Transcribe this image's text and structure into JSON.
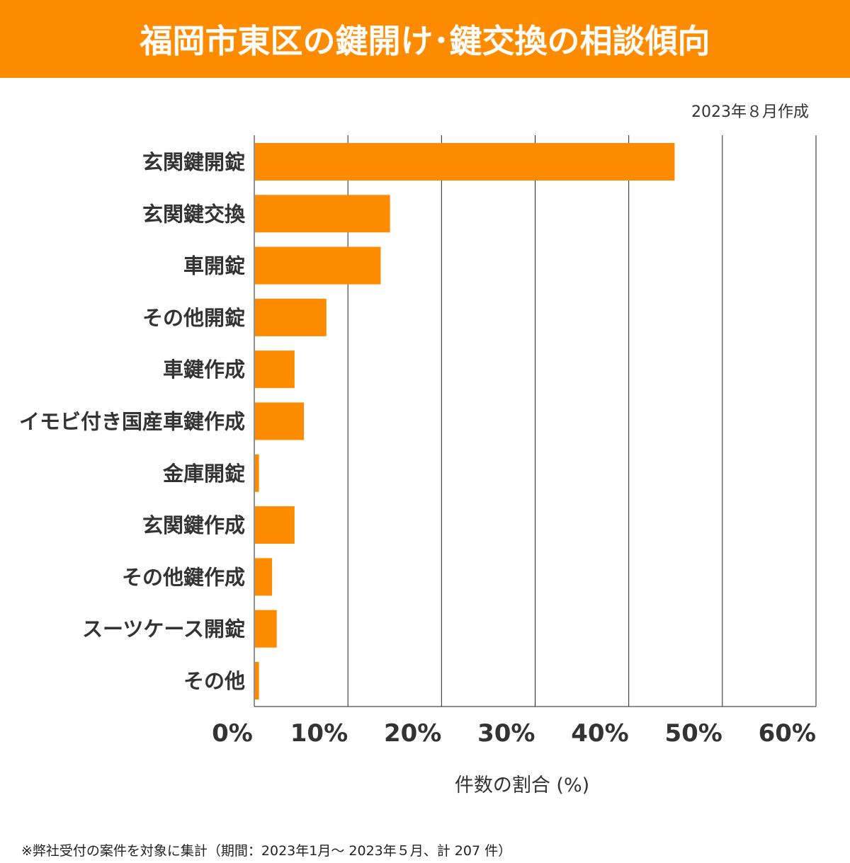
{
  "header": {
    "title": "福岡市東区の鍵開け･鍵交換の相談傾向"
  },
  "date_note": "2023年８月作成",
  "footnote": "※弊社受付の案件を対象に集計（期間：2023年1月～ 2023年５月、計 207 件）",
  "colors": {
    "bar": "#ff8c00",
    "header": "#ff8c00"
  },
  "chart_data": {
    "type": "bar",
    "orientation": "horizontal",
    "categories": [
      "玄関鍵開錠",
      "玄関鍵交換",
      "車開錠",
      "その他開錠",
      "車鍵作成",
      "イモビ付き国産車鍵作成",
      "金庫開錠",
      "玄関鍵作成",
      "その他鍵作成",
      "スーツケース開錠",
      "その他"
    ],
    "values": [
      44.9,
      14.5,
      13.5,
      7.7,
      4.3,
      5.3,
      0.5,
      4.3,
      1.9,
      2.4,
      0.5
    ],
    "xlabel": "件数の割合 (%)",
    "xlim": [
      0,
      60
    ],
    "xticks": [
      "0%",
      "10%",
      "20%",
      "30%",
      "40%",
      "50%",
      "60%"
    ],
    "grid": true
  }
}
